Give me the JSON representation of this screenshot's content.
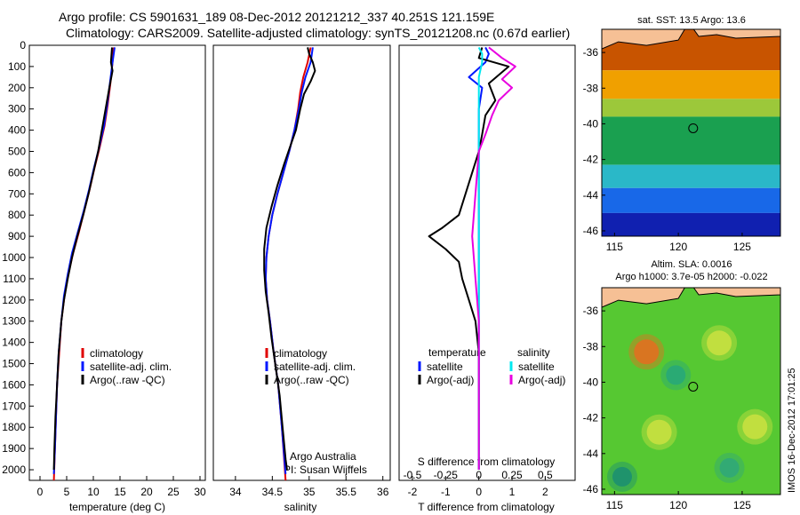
{
  "figure": {
    "title_line1": "Argo profile: CS 5901631_189 08-Dec-2012 20121212_337 40.251S 121.159E",
    "title_line2": "Climatology: CARS2009. Satellite-adjusted climatology: synTS_20121208.nc (0.67d earlier)",
    "credit_line1": "Argo Australia",
    "credit_line2": "PI: Susan Wijffels",
    "footer_stamp": "IMOS 16-Dec-2012 17:01:25",
    "colors": {
      "climatology": "#e00000",
      "satellite": "#0018ff",
      "argo": "#000000",
      "salinity_satellite": "#00e8f0",
      "salinity_argo": "#e800e0",
      "land": "#f6c095"
    }
  },
  "chart_data": [
    {
      "type": "line",
      "id": "temperature",
      "xlabel": "temperature (deg C)",
      "ylabel": "",
      "xlim": [
        -2,
        31
      ],
      "ylim": [
        2050,
        0
      ],
      "xticks": [
        0,
        5,
        10,
        15,
        20,
        25,
        30
      ],
      "yticks": [
        0,
        100,
        200,
        300,
        400,
        500,
        600,
        700,
        800,
        900,
        1000,
        1100,
        1200,
        1300,
        1400,
        1500,
        1600,
        1700,
        1800,
        1900,
        2000
      ],
      "legend": [
        "climatology",
        "satellite-adj. clim.",
        "Argo(..raw -QC)"
      ],
      "series": [
        {
          "name": "climatology",
          "color_key": "climatology",
          "points": [
            [
              13.8,
              10
            ],
            [
              13.6,
              80
            ],
            [
              13.2,
              180
            ],
            [
              12.7,
              280
            ],
            [
              12.1,
              380
            ],
            [
              11.2,
              480
            ],
            [
              10.2,
              580
            ],
            [
              9.3,
              680
            ],
            [
              8.3,
              780
            ],
            [
              7.3,
              880
            ],
            [
              6.2,
              980
            ],
            [
              5.3,
              1080
            ],
            [
              4.6,
              1180
            ],
            [
              4.0,
              1300
            ],
            [
              3.6,
              1450
            ],
            [
              3.2,
              1600
            ],
            [
              3.0,
              1750
            ],
            [
              2.8,
              1900
            ],
            [
              2.6,
              2050
            ]
          ]
        },
        {
          "name": "satellite-adj. clim.",
          "color_key": "satellite",
          "points": [
            [
              14.0,
              10
            ],
            [
              13.6,
              80
            ],
            [
              13.1,
              180
            ],
            [
              12.6,
              280
            ],
            [
              12.0,
              380
            ],
            [
              11.1,
              480
            ],
            [
              10.1,
              580
            ],
            [
              9.2,
              680
            ],
            [
              8.2,
              780
            ],
            [
              7.1,
              880
            ],
            [
              6.0,
              980
            ],
            [
              5.2,
              1080
            ],
            [
              4.5,
              1180
            ],
            [
              4.0,
              1300
            ],
            [
              3.5,
              1450
            ],
            [
              3.2,
              1600
            ],
            [
              3.0,
              1750
            ],
            [
              2.8,
              1900
            ],
            [
              2.6,
              2020
            ]
          ]
        },
        {
          "name": "Argo(..raw -QC)",
          "color_key": "argo",
          "points": [
            [
              13.5,
              10
            ],
            [
              13.3,
              80
            ],
            [
              13.6,
              120
            ],
            [
              13.0,
              200
            ],
            [
              12.3,
              300
            ],
            [
              11.6,
              400
            ],
            [
              10.9,
              500
            ],
            [
              10.0,
              600
            ],
            [
              9.1,
              700
            ],
            [
              8.1,
              800
            ],
            [
              7.0,
              900
            ],
            [
              6.0,
              1000
            ],
            [
              5.2,
              1100
            ],
            [
              4.5,
              1200
            ],
            [
              4.0,
              1300
            ],
            [
              3.5,
              1450
            ],
            [
              3.2,
              1600
            ],
            [
              2.9,
              1750
            ],
            [
              2.7,
              1900
            ],
            [
              2.6,
              2000
            ]
          ]
        }
      ]
    },
    {
      "type": "line",
      "id": "salinity",
      "xlabel": "salinity",
      "ylabel": "",
      "xlim": [
        33.7,
        36.1
      ],
      "ylim": [
        2050,
        0
      ],
      "xticks": [
        34,
        34.5,
        35,
        35.5,
        36
      ],
      "legend": [
        "climatology",
        "satellite-adj. clim.",
        "Argo(..raw -QC)"
      ],
      "series": [
        {
          "name": "climatology",
          "color_key": "climatology",
          "points": [
            [
              35.02,
              10
            ],
            [
              34.98,
              80
            ],
            [
              34.92,
              150
            ],
            [
              34.88,
              220
            ],
            [
              34.85,
              300
            ],
            [
              34.8,
              400
            ],
            [
              34.73,
              500
            ],
            [
              34.65,
              600
            ],
            [
              34.57,
              700
            ],
            [
              34.5,
              800
            ],
            [
              34.45,
              900
            ],
            [
              34.42,
              1000
            ],
            [
              34.41,
              1100
            ],
            [
              34.43,
              1200
            ],
            [
              34.47,
              1300
            ],
            [
              34.52,
              1450
            ],
            [
              34.58,
              1600
            ],
            [
              34.63,
              1800
            ],
            [
              34.68,
              2050
            ]
          ]
        },
        {
          "name": "satellite-adj. clim.",
          "color_key": "satellite",
          "points": [
            [
              35.05,
              10
            ],
            [
              35.02,
              80
            ],
            [
              34.95,
              150
            ],
            [
              34.9,
              220
            ],
            [
              34.86,
              300
            ],
            [
              34.8,
              400
            ],
            [
              34.73,
              500
            ],
            [
              34.65,
              600
            ],
            [
              34.57,
              700
            ],
            [
              34.5,
              800
            ],
            [
              34.45,
              900
            ],
            [
              34.42,
              1000
            ],
            [
              34.41,
              1100
            ],
            [
              34.43,
              1200
            ],
            [
              34.47,
              1300
            ],
            [
              34.52,
              1450
            ],
            [
              34.58,
              1600
            ],
            [
              34.63,
              1800
            ],
            [
              34.68,
              2020
            ]
          ]
        },
        {
          "name": "Argo(..raw -QC)",
          "color_key": "argo",
          "points": [
            [
              34.98,
              10
            ],
            [
              35.0,
              40
            ],
            [
              35.05,
              80
            ],
            [
              35.08,
              120
            ],
            [
              35.02,
              170
            ],
            [
              34.93,
              230
            ],
            [
              34.88,
              300
            ],
            [
              34.82,
              400
            ],
            [
              34.74,
              480
            ],
            [
              34.66,
              560
            ],
            [
              34.57,
              660
            ],
            [
              34.49,
              760
            ],
            [
              34.42,
              860
            ],
            [
              34.39,
              960
            ],
            [
              34.39,
              1060
            ],
            [
              34.41,
              1160
            ],
            [
              34.45,
              1260
            ],
            [
              34.49,
              1380
            ],
            [
              34.54,
              1500
            ],
            [
              34.6,
              1650
            ],
            [
              34.64,
              1800
            ],
            [
              34.68,
              1950
            ],
            [
              34.7,
              2000
            ]
          ]
        }
      ]
    },
    {
      "type": "line",
      "id": "difference",
      "xlabel": "T difference from climatology",
      "secondary_xlabel": "S difference from climatology",
      "xlim": [
        -2.4,
        2.9
      ],
      "secondary_xlim": [
        -0.6,
        0.725
      ],
      "ylim": [
        2050,
        0
      ],
      "xticks": [
        -2,
        -1,
        0,
        1,
        2
      ],
      "secondary_xticks": [
        "-0.5",
        "-0.25",
        "0",
        "0.25",
        "0.5"
      ],
      "legend_temperature_heading": "temperature",
      "legend_salinity_heading": "salinity",
      "legend": [
        "satellite",
        "Argo(-adj)",
        "satellite",
        "Argo(-adj)"
      ],
      "series": [
        {
          "name": "satellite",
          "group": "temperature",
          "color_key": "satellite",
          "points": [
            [
              0.2,
              10
            ],
            [
              0.3,
              40
            ],
            [
              0.2,
              80
            ],
            [
              -0.3,
              150
            ],
            [
              0.1,
              200
            ],
            [
              0.0,
              300
            ],
            [
              0.0,
              500
            ],
            [
              0.0,
              2000
            ]
          ]
        },
        {
          "name": "Argo(-adj)",
          "group": "temperature",
          "color_key": "argo",
          "points": [
            [
              0.1,
              10
            ],
            [
              0.0,
              60
            ],
            [
              0.9,
              100
            ],
            [
              0.3,
              180
            ],
            [
              0.5,
              260
            ],
            [
              0.2,
              330
            ],
            [
              0.1,
              420
            ],
            [
              0.0,
              500
            ],
            [
              -0.2,
              600
            ],
            [
              -0.4,
              700
            ],
            [
              -0.6,
              800
            ],
            [
              -1.1,
              860
            ],
            [
              -1.5,
              900
            ],
            [
              -1.0,
              960
            ],
            [
              -0.6,
              1020
            ],
            [
              -0.5,
              1100
            ],
            [
              -0.3,
              1200
            ],
            [
              -0.1,
              1300
            ],
            [
              0.0,
              1450
            ],
            [
              0.0,
              2000
            ]
          ]
        },
        {
          "name": "satellite",
          "group": "salinity",
          "color_key": "salinity_satellite",
          "points": [
            [
              0.0,
              10
            ],
            [
              0.1,
              40
            ],
            [
              0.1,
              80
            ],
            [
              0.0,
              150
            ],
            [
              0.0,
              300
            ],
            [
              0.0,
              500
            ],
            [
              0.0,
              2000
            ]
          ]
        },
        {
          "name": "Argo(-adj)",
          "group": "salinity",
          "color_key": "salinity_argo",
          "points": [
            [
              0.3,
              10
            ],
            [
              0.7,
              60
            ],
            [
              1.1,
              100
            ],
            [
              0.7,
              160
            ],
            [
              1.0,
              200
            ],
            [
              0.6,
              260
            ],
            [
              0.4,
              330
            ],
            [
              0.2,
              420
            ],
            [
              0.0,
              500
            ],
            [
              -0.1,
              700
            ],
            [
              -0.2,
              900
            ],
            [
              -0.1,
              1100
            ],
            [
              0.0,
              1300
            ],
            [
              0.0,
              2000
            ]
          ]
        }
      ]
    },
    {
      "type": "heatmap",
      "id": "sst_map",
      "title": "sat. SST: 13.5  Argo: 13.6",
      "xlim": [
        114,
        128
      ],
      "ylim": [
        -46.3,
        -34.7
      ],
      "xticks": [
        115,
        120,
        125
      ],
      "yticks": [
        -36,
        -38,
        -40,
        -42,
        -44,
        -46
      ],
      "marker": {
        "lon": 121.16,
        "lat": -40.25
      },
      "color_bands": [
        {
          "lat_top": -34.7,
          "lat_bottom": -37.0,
          "color": "#c85400"
        },
        {
          "lat_top": -37.0,
          "lat_bottom": -38.6,
          "color": "#f0a000"
        },
        {
          "lat_top": -38.6,
          "lat_bottom": -39.6,
          "color": "#9cc83a"
        },
        {
          "lat_top": -39.6,
          "lat_bottom": -42.3,
          "color": "#1aa050"
        },
        {
          "lat_top": -42.3,
          "lat_bottom": -43.6,
          "color": "#2ab8c8"
        },
        {
          "lat_top": -43.6,
          "lat_bottom": -45.0,
          "color": "#1868e8"
        },
        {
          "lat_top": -45.0,
          "lat_bottom": -46.3,
          "color": "#1020b0"
        }
      ]
    },
    {
      "type": "heatmap",
      "id": "sla_map",
      "title": "Altim. SLA: 0.0016",
      "subtitle": "Argo h1000: 3.7e-05 h2000: -0.022",
      "xlim": [
        114,
        128
      ],
      "ylim": [
        -46.3,
        -34.7
      ],
      "xticks": [
        115,
        120,
        125
      ],
      "yticks": [
        -36,
        -38,
        -40,
        -42,
        -44,
        -46
      ],
      "marker": {
        "lon": 121.16,
        "lat": -40.25
      },
      "background_color": "#56c832",
      "features": [
        {
          "kind": "positive",
          "lon": 117.5,
          "lat": -38.3,
          "color": "#e07020"
        },
        {
          "kind": "positive",
          "lon": 123.2,
          "lat": -37.8,
          "color": "#c8e040"
        },
        {
          "kind": "positive",
          "lon": 126.0,
          "lat": -42.5,
          "color": "#c8e040"
        },
        {
          "kind": "positive",
          "lon": 118.5,
          "lat": -42.8,
          "color": "#c8e040"
        },
        {
          "kind": "negative",
          "lon": 119.8,
          "lat": -39.6,
          "color": "#28a878"
        },
        {
          "kind": "negative",
          "lon": 115.6,
          "lat": -45.3,
          "color": "#1c9070"
        },
        {
          "kind": "negative",
          "lon": 124.0,
          "lat": -44.8,
          "color": "#30a878"
        }
      ]
    }
  ]
}
